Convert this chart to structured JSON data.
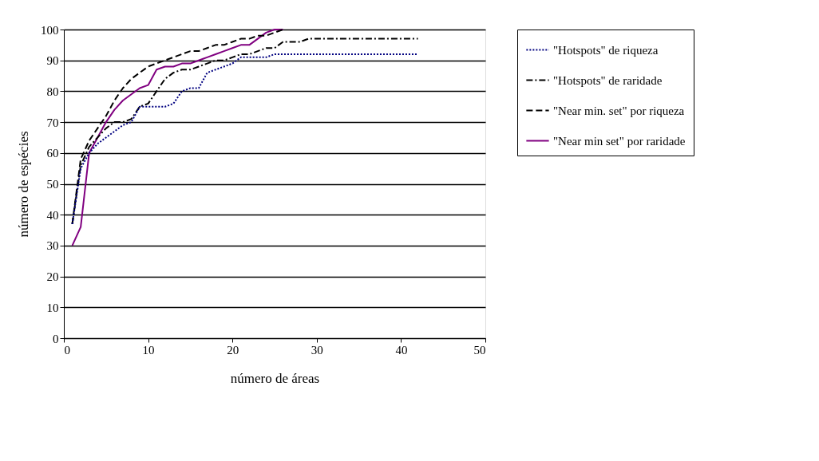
{
  "chart_data": {
    "type": "line",
    "xlabel": "número de áreas",
    "ylabel": "número de espécies",
    "xlim": [
      0,
      50
    ],
    "xticks": [
      0,
      10,
      20,
      30,
      40,
      50
    ],
    "ylim": [
      0,
      100
    ],
    "yticks": [
      0,
      10,
      20,
      30,
      40,
      50,
      60,
      70,
      80,
      90,
      100
    ],
    "grid": "y",
    "legend": "right",
    "marker": "none",
    "series": [
      {
        "name": "\"Hotspots\" de riqueza",
        "color": "#000080",
        "line_style": "dotted",
        "x": [
          1,
          2,
          3,
          4,
          5,
          6,
          7,
          8,
          9,
          10,
          11,
          12,
          13,
          14,
          15,
          16,
          17,
          18,
          19,
          20,
          21,
          22,
          23,
          24,
          25,
          26,
          42
        ],
        "values": [
          37,
          55,
          60,
          63,
          65,
          67,
          69,
          70,
          75,
          75,
          75,
          75,
          76,
          80,
          81,
          81,
          86,
          87,
          88,
          89,
          91,
          91,
          91,
          91,
          92,
          92,
          92
        ]
      },
      {
        "name": "\"Hotspots\" de raridade",
        "color": "#000000",
        "line_style": "dashdot",
        "x": [
          1,
          2,
          3,
          4,
          5,
          6,
          7,
          8,
          9,
          10,
          11,
          12,
          13,
          14,
          15,
          16,
          17,
          18,
          19,
          20,
          21,
          22,
          23,
          24,
          25,
          26,
          27,
          28,
          29,
          42
        ],
        "values": [
          37,
          56,
          62,
          65,
          68,
          70,
          70,
          71,
          75,
          76,
          80,
          84,
          86,
          87,
          87,
          88,
          89,
          90,
          90,
          91,
          92,
          92,
          93,
          94,
          94,
          96,
          96,
          96,
          97,
          97
        ]
      },
      {
        "name": "\"Near min. set\" por riqueza",
        "color": "#000000",
        "line_style": "dashed",
        "x": [
          1,
          2,
          3,
          4,
          5,
          6,
          7,
          8,
          9,
          10,
          11,
          12,
          13,
          14,
          15,
          16,
          17,
          18,
          19,
          20,
          21,
          22,
          23,
          24,
          25,
          26
        ],
        "values": [
          37,
          58,
          64,
          68,
          72,
          77,
          81,
          84,
          86,
          88,
          89,
          90,
          91,
          92,
          93,
          93,
          94,
          95,
          95,
          96,
          97,
          97,
          98,
          98,
          99,
          100
        ]
      },
      {
        "name": "\"Near min set\" por raridade",
        "color": "#800080",
        "line_style": "solid",
        "x": [
          1,
          2,
          3,
          4,
          5,
          6,
          7,
          8,
          9,
          10,
          11,
          12,
          13,
          14,
          15,
          16,
          17,
          18,
          19,
          20,
          21,
          22,
          23,
          24,
          25,
          26
        ],
        "values": [
          30,
          36,
          60,
          65,
          70,
          74,
          77,
          79,
          81,
          82,
          87,
          88,
          88,
          89,
          89,
          90,
          91,
          92,
          93,
          94,
          95,
          95,
          97,
          99,
          100,
          100
        ]
      }
    ]
  }
}
